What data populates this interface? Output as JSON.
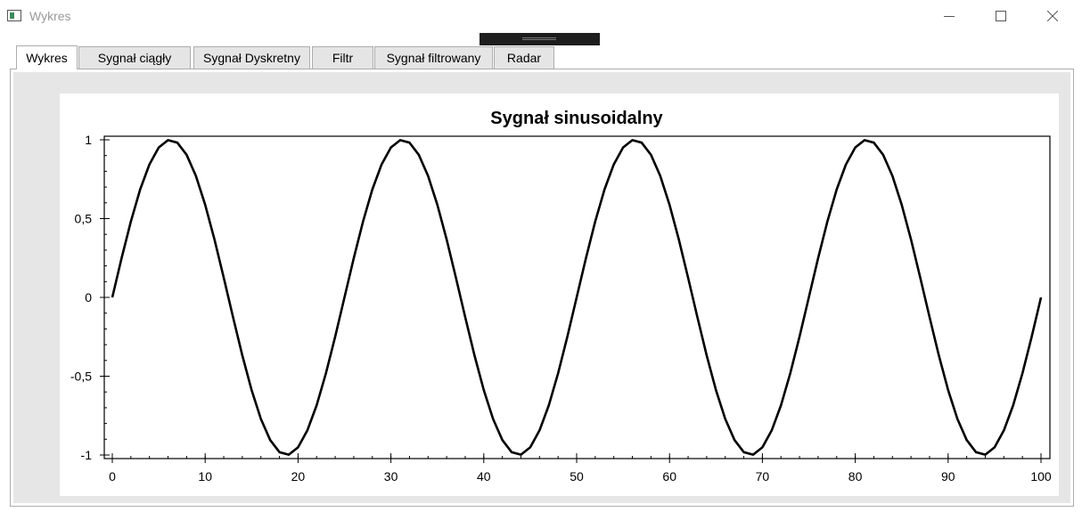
{
  "window": {
    "title": "Wykres",
    "controls": {
      "minimize": "minimize",
      "maximize": "maximize",
      "close": "close"
    }
  },
  "tabs": [
    {
      "label": "Wykres",
      "active": true
    },
    {
      "label": "Sygnał ciągły",
      "active": false
    },
    {
      "label": "Sygnał Dyskretny",
      "active": false
    },
    {
      "label": "Filtr",
      "active": false
    },
    {
      "label": "Sygnał filtrowany",
      "active": false
    },
    {
      "label": "Radar",
      "active": false
    }
  ],
  "chart_data": {
    "type": "line",
    "title": "Sygnał sinusoidalny",
    "xlabel": "",
    "ylabel": "",
    "xlim": [
      0,
      100
    ],
    "ylim": [
      -1,
      1
    ],
    "x_ticks": [
      0,
      10,
      20,
      30,
      40,
      50,
      60,
      70,
      80,
      90,
      100
    ],
    "y_ticks": [
      1,
      0.5,
      0,
      -0.5,
      -1
    ],
    "x_tick_labels": [
      "0",
      "10",
      "20",
      "30",
      "40",
      "50",
      "60",
      "70",
      "80",
      "90",
      "100"
    ],
    "y_tick_labels": [
      "1",
      "0,5",
      "0",
      "-0,5",
      "-1"
    ],
    "grid": false,
    "line_color": "#000000",
    "series": [
      {
        "x": [
          0,
          1,
          2,
          3,
          4,
          5,
          6,
          7,
          8,
          9,
          10,
          11,
          12,
          13,
          14,
          15,
          16,
          17,
          18,
          19,
          20,
          21,
          22,
          23,
          24,
          25,
          26,
          27,
          28,
          29,
          30,
          31,
          32,
          33,
          34,
          35,
          36,
          37,
          38,
          39,
          40,
          41,
          42,
          43,
          44,
          45,
          46,
          47,
          48,
          49,
          50,
          51,
          52,
          53,
          54,
          55,
          56,
          57,
          58,
          59,
          60,
          61,
          62,
          63,
          64,
          65,
          66,
          67,
          68,
          69,
          70,
          71,
          72,
          73,
          74,
          75,
          76,
          77,
          78,
          79,
          80,
          81,
          82,
          83,
          84,
          85,
          86,
          87,
          88,
          89,
          90,
          91,
          92,
          93,
          94,
          95,
          96,
          97,
          98,
          99,
          100
        ],
        "values": [
          0,
          0.249,
          0.482,
          0.685,
          0.844,
          0.951,
          0.998,
          0.982,
          0.905,
          0.771,
          0.588,
          0.368,
          0.125,
          -0.125,
          -0.368,
          -0.588,
          -0.771,
          -0.905,
          -0.982,
          -0.998,
          -0.951,
          -0.844,
          -0.685,
          -0.482,
          -0.249,
          0,
          0.249,
          0.482,
          0.685,
          0.844,
          0.951,
          0.998,
          0.982,
          0.905,
          0.771,
          0.588,
          0.368,
          0.125,
          -0.125,
          -0.368,
          -0.588,
          -0.771,
          -0.905,
          -0.982,
          -0.998,
          -0.951,
          -0.844,
          -0.685,
          -0.482,
          -0.249,
          0,
          0.249,
          0.482,
          0.685,
          0.844,
          0.951,
          0.998,
          0.982,
          0.905,
          0.771,
          0.588,
          0.368,
          0.125,
          -0.125,
          -0.368,
          -0.588,
          -0.771,
          -0.905,
          -0.982,
          -0.998,
          -0.951,
          -0.844,
          -0.685,
          -0.482,
          -0.249,
          0,
          0.249,
          0.482,
          0.685,
          0.844,
          0.951,
          0.998,
          0.982,
          0.905,
          0.771,
          0.588,
          0.368,
          0.125,
          -0.125,
          -0.368,
          -0.588,
          -0.771,
          -0.905,
          -0.982,
          -0.998,
          -0.951,
          -0.844,
          -0.685,
          -0.482,
          -0.249,
          0
        ]
      }
    ]
  }
}
